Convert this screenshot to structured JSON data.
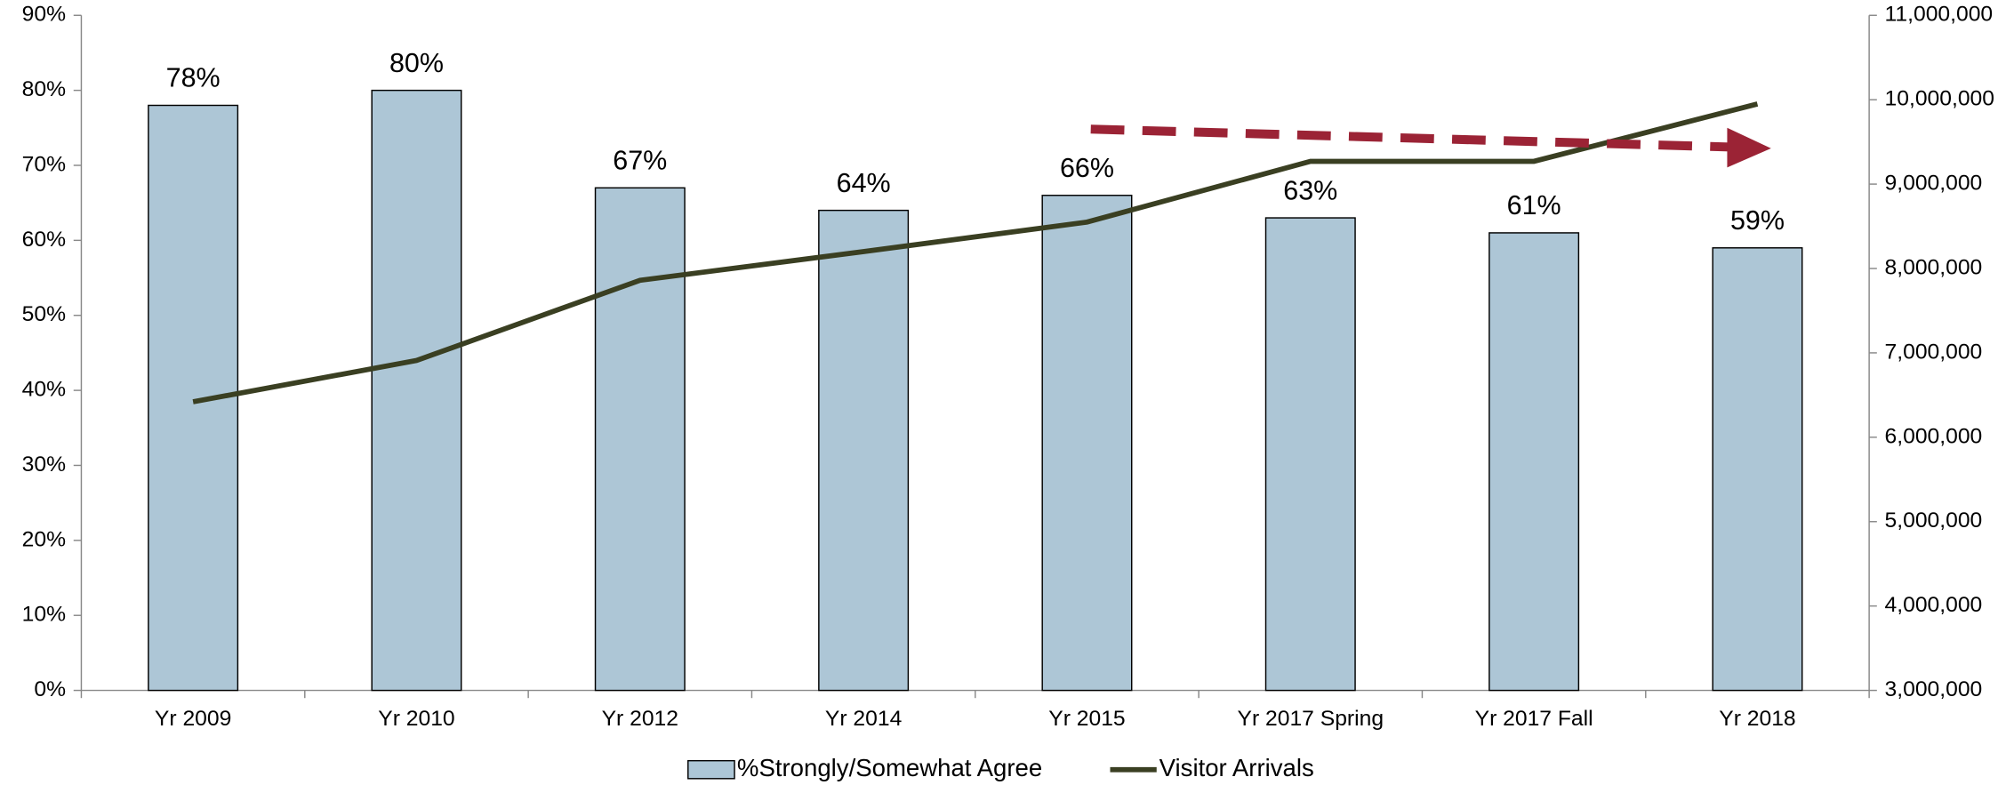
{
  "chart_data": {
    "type": "bar",
    "categories": [
      "Yr 2009",
      "Yr 2010",
      "Yr 2012",
      "Yr 2014",
      "Yr 2015",
      "Yr 2017 Spring",
      "Yr 2017 Fall",
      "Yr 2018"
    ],
    "series": [
      {
        "name": "%Strongly/Somewhat Agree",
        "color": "#adc6d6",
        "type": "bar",
        "values": [
          78,
          80,
          67,
          64,
          66,
          63,
          61,
          59
        ],
        "value_labels": [
          "78%",
          "80%",
          "67%",
          "64%",
          "66%",
          "63%",
          "61%",
          "59%"
        ]
      },
      {
        "name": "Visitor Arrivals",
        "color": "#3a3f22",
        "type": "line",
        "axis": "y2",
        "values": [
          6420000,
          6910000,
          7860000,
          8200000,
          8550000,
          9270000,
          9270000,
          9950000
        ]
      }
    ],
    "ylim": [
      0,
      90
    ],
    "yticks": [
      {
        "value": 0,
        "label": "0%"
      },
      {
        "value": 10,
        "label": "10%"
      },
      {
        "value": 20,
        "label": "20%"
      },
      {
        "value": 30,
        "label": "30%"
      },
      {
        "value": 40,
        "label": "40%"
      },
      {
        "value": 50,
        "label": "50%"
      },
      {
        "value": 60,
        "label": "60%"
      },
      {
        "value": 70,
        "label": "70%"
      },
      {
        "value": 80,
        "label": "80%"
      },
      {
        "value": 90,
        "label": "90%"
      }
    ],
    "y2lim": [
      3000000,
      11000000
    ],
    "y2ticks": [
      {
        "value": 3000000,
        "label": "3,000,000"
      },
      {
        "value": 4000000,
        "label": "4,000,000"
      },
      {
        "value": 5000000,
        "label": "5,000,000"
      },
      {
        "value": 6000000,
        "label": "6,000,000"
      },
      {
        "value": 7000000,
        "label": "7,000,000"
      },
      {
        "value": 8000000,
        "label": "8,000,000"
      },
      {
        "value": 9000000,
        "label": "9,000,000"
      },
      {
        "value": 10000000,
        "label": "10,000,000"
      },
      {
        "value": 11000000,
        "label": "11,000,000"
      }
    ],
    "legend": "bottom"
  }
}
